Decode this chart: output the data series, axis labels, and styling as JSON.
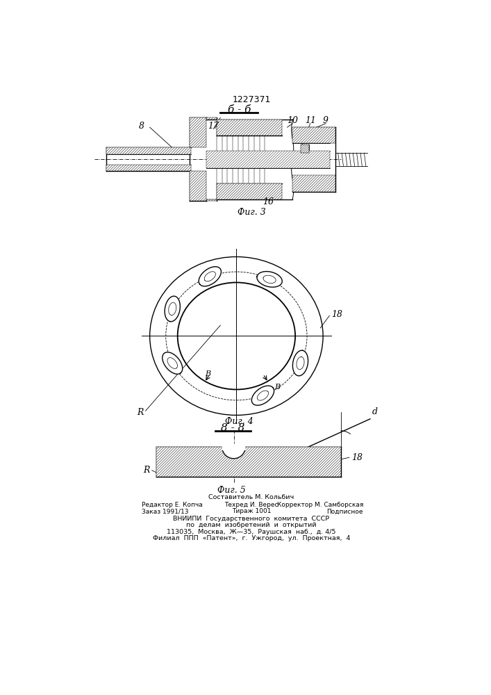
{
  "title": "1227371",
  "fig3_label": "б - б",
  "fig3_caption": "Фиг. 3",
  "fig4_caption": "Фиг. 4",
  "fig5_caption": "Фиг. 5",
  "fig5_section": "8 - 8",
  "bg_color": "#ffffff",
  "line_color": "#000000",
  "footer_col1_line1": "Редактор Е. Копча",
  "footer_col1_line2": "Заказ 1991/13",
  "footer_col2_line0": "Составитель М. Кольбич",
  "footer_col2_line1": "Техред И. Верес",
  "footer_col2_line2": "Тираж 1001",
  "footer_col3_line1": "Корректор М. Самборская",
  "footer_col3_line2": "Подписное",
  "footer_line3": "ВНИИПИ  Государственного  комитета  СССР",
  "footer_line4": "по  делам  изобретений  и  открытий",
  "footer_line5": "113035,  Москва,  Ж—35,  Раушская  наб.,  д. 4/5",
  "footer_line6": "Филиал  ППП  «Патент»,  г.  Ужгород,  ул.  Проектная,  4"
}
